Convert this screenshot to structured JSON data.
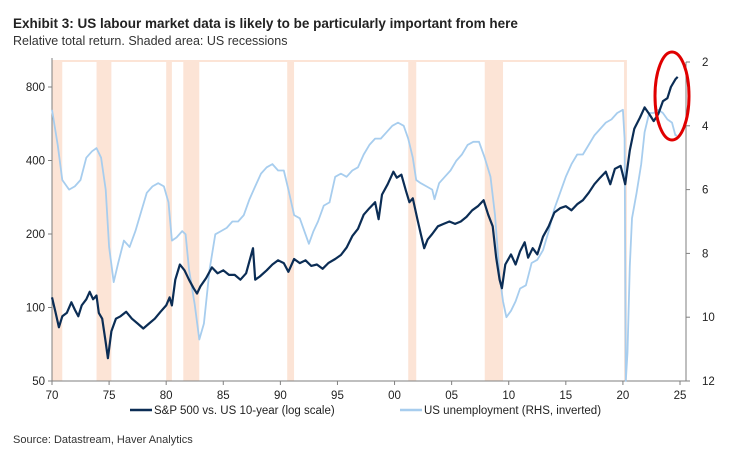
{
  "chart_data": {
    "type": "line",
    "title": "Exhibit 3: US labour market data is likely to be particularly important from here",
    "subtitle": "Relative total return. Shaded area: US recessions",
    "source": "Source: Datastream, Haver Analytics",
    "x_ticks": [
      "70",
      "75",
      "80",
      "85",
      "90",
      "95",
      "00",
      "05",
      "10",
      "15",
      "20",
      "25"
    ],
    "x_range": [
      1970,
      2025
    ],
    "left_axis": {
      "scale": "log",
      "ticks": [
        50,
        100,
        200,
        400,
        800
      ],
      "ylim": [
        50,
        900
      ]
    },
    "right_axis": {
      "scale": "linear",
      "inverted": true,
      "ticks": [
        2,
        4,
        6,
        8,
        10,
        12
      ],
      "ylim": [
        2,
        12
      ]
    },
    "recessions": [
      [
        1970.0,
        1970.9
      ],
      [
        1973.9,
        1975.2
      ],
      [
        1980.0,
        1980.5
      ],
      [
        1981.5,
        1982.9
      ],
      [
        1990.6,
        1991.2
      ],
      [
        2001.2,
        2001.9
      ],
      [
        2007.9,
        2009.5
      ],
      [
        2020.1,
        2020.35
      ]
    ],
    "recession_color": "#fce4d6",
    "series": [
      {
        "name": "S&P 500 vs. US 10-year (log scale)",
        "axis": "left",
        "color": "#0b2d55",
        "points": [
          [
            1970,
            110
          ],
          [
            1970.3,
            96
          ],
          [
            1970.6,
            83
          ],
          [
            1970.9,
            92
          ],
          [
            1971.3,
            95
          ],
          [
            1971.7,
            105
          ],
          [
            1972,
            98
          ],
          [
            1972.3,
            92
          ],
          [
            1972.6,
            102
          ],
          [
            1973,
            108
          ],
          [
            1973.3,
            116
          ],
          [
            1973.6,
            108
          ],
          [
            1973.9,
            112
          ],
          [
            1974.1,
            95
          ],
          [
            1974.4,
            90
          ],
          [
            1974.7,
            72
          ],
          [
            1974.9,
            62
          ],
          [
            1975.2,
            80
          ],
          [
            1975.6,
            90
          ],
          [
            1976,
            92
          ],
          [
            1976.5,
            96
          ],
          [
            1977,
            90
          ],
          [
            1977.5,
            86
          ],
          [
            1978,
            82
          ],
          [
            1978.5,
            86
          ],
          [
            1979,
            90
          ],
          [
            1979.5,
            96
          ],
          [
            1980,
            102
          ],
          [
            1980.3,
            110
          ],
          [
            1980.5,
            102
          ],
          [
            1980.8,
            130
          ],
          [
            1981.2,
            150
          ],
          [
            1981.6,
            142
          ],
          [
            1982,
            130
          ],
          [
            1982.4,
            120
          ],
          [
            1982.7,
            114
          ],
          [
            1983,
            122
          ],
          [
            1983.5,
            132
          ],
          [
            1984,
            146
          ],
          [
            1984.5,
            138
          ],
          [
            1985,
            142
          ],
          [
            1985.5,
            136
          ],
          [
            1986,
            136
          ],
          [
            1986.5,
            130
          ],
          [
            1987,
            138
          ],
          [
            1987.6,
            175
          ],
          [
            1987.8,
            130
          ],
          [
            1988.2,
            134
          ],
          [
            1988.8,
            142
          ],
          [
            1989.3,
            150
          ],
          [
            1989.8,
            156
          ],
          [
            1990.3,
            152
          ],
          [
            1990.7,
            140
          ],
          [
            1991.2,
            158
          ],
          [
            1991.7,
            152
          ],
          [
            1992.2,
            156
          ],
          [
            1992.7,
            148
          ],
          [
            1993.2,
            150
          ],
          [
            1993.7,
            144
          ],
          [
            1994.2,
            152
          ],
          [
            1994.8,
            158
          ],
          [
            1995.3,
            164
          ],
          [
            1995.8,
            176
          ],
          [
            1996.3,
            196
          ],
          [
            1996.8,
            210
          ],
          [
            1997.3,
            240
          ],
          [
            1997.8,
            255
          ],
          [
            1998.3,
            270
          ],
          [
            1998.6,
            230
          ],
          [
            1998.9,
            290
          ],
          [
            1999.4,
            320
          ],
          [
            1999.9,
            360
          ],
          [
            2000.2,
            340
          ],
          [
            2000.6,
            350
          ],
          [
            2001,
            300
          ],
          [
            2001.3,
            270
          ],
          [
            2001.6,
            280
          ],
          [
            2002,
            230
          ],
          [
            2002.3,
            200
          ],
          [
            2002.6,
            175
          ],
          [
            2002.9,
            190
          ],
          [
            2003.3,
            200
          ],
          [
            2003.8,
            215
          ],
          [
            2004.3,
            220
          ],
          [
            2004.8,
            225
          ],
          [
            2005.3,
            220
          ],
          [
            2005.8,
            225
          ],
          [
            2006.3,
            235
          ],
          [
            2006.8,
            250
          ],
          [
            2007.3,
            260
          ],
          [
            2007.8,
            275
          ],
          [
            2008.2,
            240
          ],
          [
            2008.6,
            215
          ],
          [
            2008.9,
            160
          ],
          [
            2009.2,
            130
          ],
          [
            2009.4,
            120
          ],
          [
            2009.7,
            150
          ],
          [
            2010.2,
            165
          ],
          [
            2010.6,
            150
          ],
          [
            2011,
            170
          ],
          [
            2011.4,
            185
          ],
          [
            2011.7,
            160
          ],
          [
            2012.1,
            175
          ],
          [
            2012.5,
            165
          ],
          [
            2013,
            195
          ],
          [
            2013.5,
            215
          ],
          [
            2014,
            245
          ],
          [
            2014.5,
            255
          ],
          [
            2015,
            260
          ],
          [
            2015.5,
            250
          ],
          [
            2016,
            265
          ],
          [
            2016.5,
            275
          ],
          [
            2017,
            295
          ],
          [
            2017.5,
            320
          ],
          [
            2018,
            340
          ],
          [
            2018.5,
            360
          ],
          [
            2018.9,
            320
          ],
          [
            2019.3,
            370
          ],
          [
            2019.8,
            380
          ],
          [
            2020.2,
            320
          ],
          [
            2020.6,
            440
          ],
          [
            2021,
            540
          ],
          [
            2021.5,
            600
          ],
          [
            2021.9,
            660
          ],
          [
            2022.3,
            620
          ],
          [
            2022.7,
            580
          ],
          [
            2023.1,
            620
          ],
          [
            2023.5,
            700
          ],
          [
            2023.9,
            720
          ],
          [
            2024.2,
            800
          ],
          [
            2024.6,
            860
          ],
          [
            2024.8,
            880
          ]
        ]
      },
      {
        "name": "US unemployment (RHS, inverted)",
        "axis": "right",
        "color": "#a7cdee",
        "points": [
          [
            1970,
            3.5
          ],
          [
            1970.5,
            4.6
          ],
          [
            1970.9,
            5.7
          ],
          [
            1971.5,
            6.0
          ],
          [
            1972,
            5.9
          ],
          [
            1972.5,
            5.7
          ],
          [
            1973,
            5.0
          ],
          [
            1973.5,
            4.8
          ],
          [
            1973.9,
            4.7
          ],
          [
            1974.3,
            5.0
          ],
          [
            1974.7,
            6.0
          ],
          [
            1975,
            7.8
          ],
          [
            1975.4,
            8.9
          ],
          [
            1975.8,
            8.3
          ],
          [
            1976.3,
            7.6
          ],
          [
            1976.8,
            7.8
          ],
          [
            1977.3,
            7.3
          ],
          [
            1977.8,
            6.7
          ],
          [
            1978.3,
            6.1
          ],
          [
            1978.8,
            5.9
          ],
          [
            1979.3,
            5.8
          ],
          [
            1979.8,
            5.9
          ],
          [
            1980.2,
            6.4
          ],
          [
            1980.5,
            7.6
          ],
          [
            1980.9,
            7.5
          ],
          [
            1981.4,
            7.3
          ],
          [
            1981.7,
            7.4
          ],
          [
            1982,
            8.5
          ],
          [
            1982.5,
            9.6
          ],
          [
            1982.9,
            10.7
          ],
          [
            1983.3,
            10.2
          ],
          [
            1983.8,
            8.5
          ],
          [
            1984.3,
            7.4
          ],
          [
            1984.8,
            7.3
          ],
          [
            1985.3,
            7.2
          ],
          [
            1985.8,
            7.0
          ],
          [
            1986.3,
            7.0
          ],
          [
            1986.8,
            6.8
          ],
          [
            1987.3,
            6.3
          ],
          [
            1987.8,
            5.9
          ],
          [
            1988.3,
            5.5
          ],
          [
            1988.8,
            5.3
          ],
          [
            1989.3,
            5.2
          ],
          [
            1989.8,
            5.4
          ],
          [
            1990.3,
            5.4
          ],
          [
            1990.7,
            6.0
          ],
          [
            1991.2,
            6.8
          ],
          [
            1991.7,
            6.9
          ],
          [
            1992.2,
            7.4
          ],
          [
            1992.5,
            7.7
          ],
          [
            1992.9,
            7.3
          ],
          [
            1993.3,
            7.0
          ],
          [
            1993.8,
            6.5
          ],
          [
            1994.3,
            6.4
          ],
          [
            1994.8,
            5.6
          ],
          [
            1995.3,
            5.5
          ],
          [
            1995.8,
            5.6
          ],
          [
            1996.3,
            5.4
          ],
          [
            1996.8,
            5.3
          ],
          [
            1997.3,
            4.9
          ],
          [
            1997.8,
            4.6
          ],
          [
            1998.3,
            4.4
          ],
          [
            1998.8,
            4.4
          ],
          [
            1999.3,
            4.2
          ],
          [
            1999.8,
            4.0
          ],
          [
            2000.3,
            3.9
          ],
          [
            2000.8,
            4.0
          ],
          [
            2001.2,
            4.4
          ],
          [
            2001.6,
            5.0
          ],
          [
            2001.9,
            5.7
          ],
          [
            2002.3,
            5.8
          ],
          [
            2002.8,
            5.9
          ],
          [
            2003.3,
            6.0
          ],
          [
            2003.5,
            6.3
          ],
          [
            2003.9,
            5.8
          ],
          [
            2004.4,
            5.6
          ],
          [
            2004.9,
            5.4
          ],
          [
            2005.4,
            5.1
          ],
          [
            2005.9,
            4.9
          ],
          [
            2006.4,
            4.6
          ],
          [
            2006.9,
            4.5
          ],
          [
            2007.4,
            4.5
          ],
          [
            2007.9,
            5.0
          ],
          [
            2008.4,
            5.6
          ],
          [
            2008.8,
            6.8
          ],
          [
            2009.2,
            8.7
          ],
          [
            2009.5,
            9.5
          ],
          [
            2009.8,
            10.0
          ],
          [
            2010.2,
            9.8
          ],
          [
            2010.6,
            9.5
          ],
          [
            2011,
            9.1
          ],
          [
            2011.5,
            9.0
          ],
          [
            2012,
            8.3
          ],
          [
            2012.5,
            8.2
          ],
          [
            2013,
            7.9
          ],
          [
            2013.5,
            7.3
          ],
          [
            2014,
            6.6
          ],
          [
            2014.5,
            6.1
          ],
          [
            2015,
            5.6
          ],
          [
            2015.5,
            5.2
          ],
          [
            2016,
            4.9
          ],
          [
            2016.5,
            4.9
          ],
          [
            2017,
            4.6
          ],
          [
            2017.5,
            4.3
          ],
          [
            2018,
            4.1
          ],
          [
            2018.5,
            3.9
          ],
          [
            2019,
            3.8
          ],
          [
            2019.5,
            3.6
          ],
          [
            2020,
            3.5
          ],
          [
            2020.15,
            4.4
          ],
          [
            2020.25,
            14.7
          ],
          [
            2020.4,
            11.1
          ],
          [
            2020.6,
            8.4
          ],
          [
            2020.8,
            6.9
          ],
          [
            2021.2,
            6.1
          ],
          [
            2021.6,
            5.2
          ],
          [
            2021.9,
            4.2
          ],
          [
            2022.3,
            3.6
          ],
          [
            2022.7,
            3.6
          ],
          [
            2023.1,
            3.5
          ],
          [
            2023.5,
            3.6
          ],
          [
            2023.9,
            3.8
          ],
          [
            2024.3,
            3.9
          ],
          [
            2024.6,
            4.3
          ],
          [
            2024.75,
            4.3
          ]
        ]
      }
    ],
    "legend": {
      "placement": "bottom-center",
      "entries": [
        "S&P 500 vs. US 10-year (log scale)",
        "US unemployment (RHS, inverted)"
      ]
    },
    "annotation": {
      "type": "ellipse",
      "color": "#e00000",
      "marks": "recent divergence 2023-2024"
    }
  }
}
